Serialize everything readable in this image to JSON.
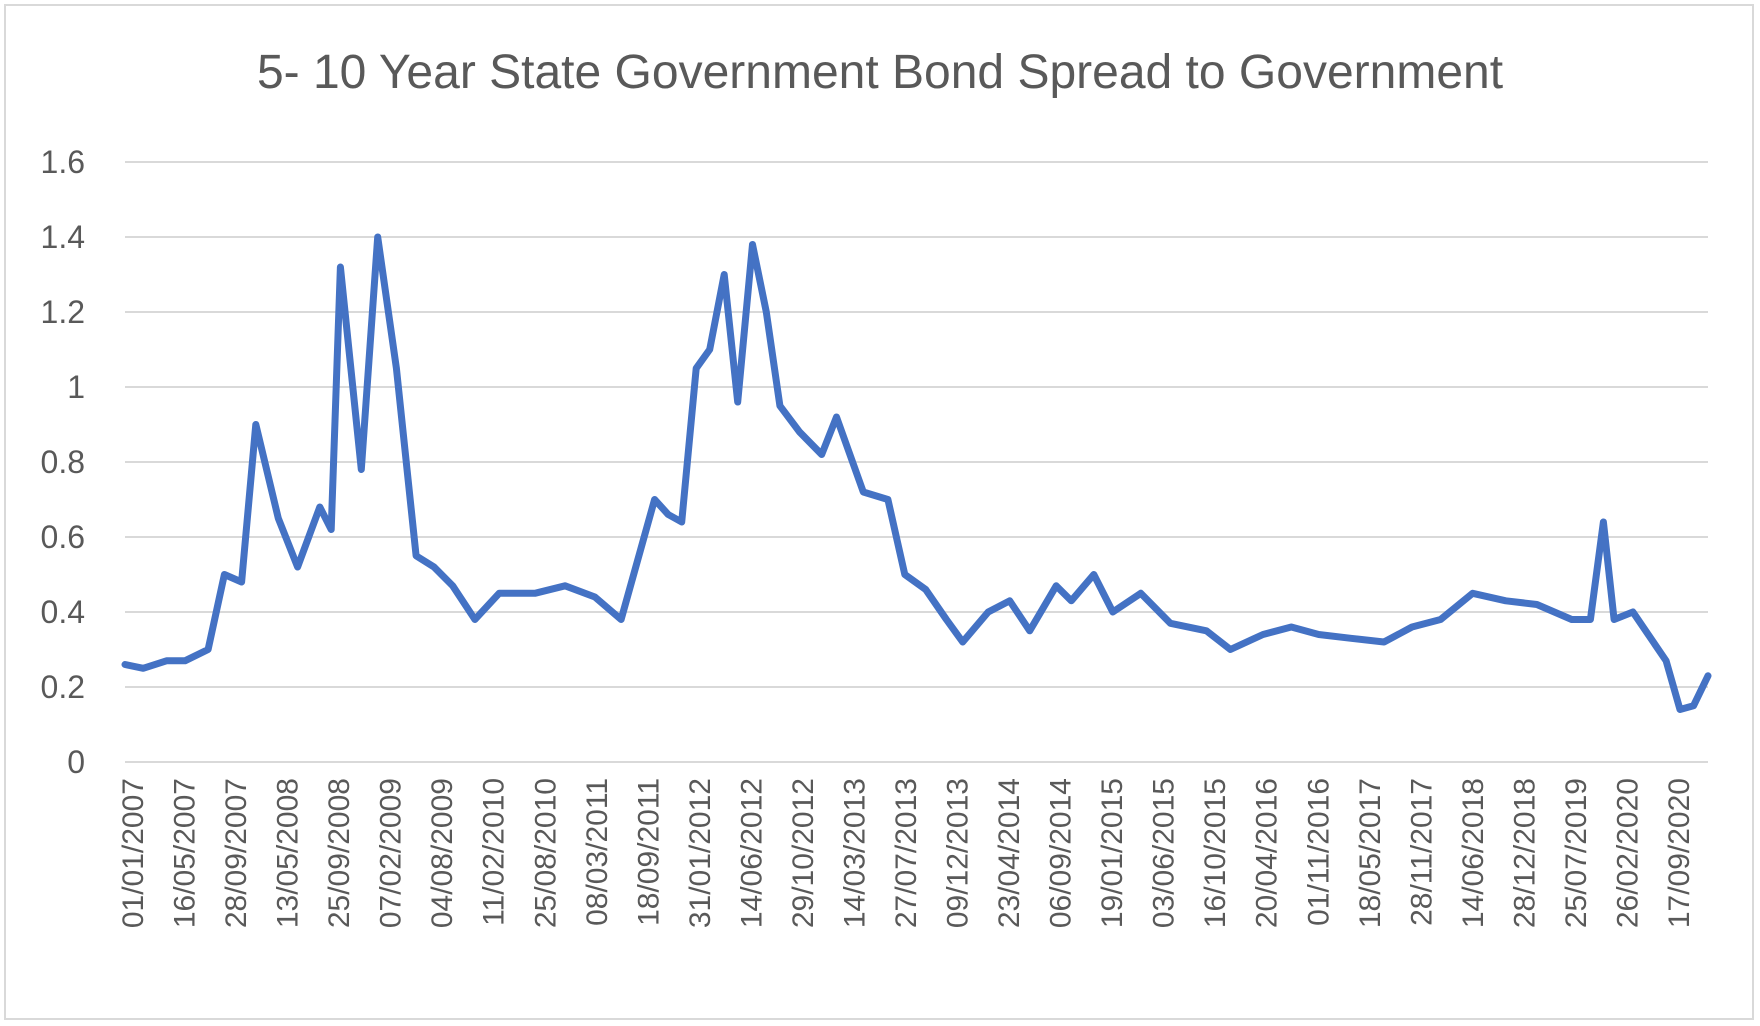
{
  "chart_data": {
    "type": "line",
    "title": "5- 10 Year State Government Bond Spread to Government",
    "xlabel": "",
    "ylabel": "",
    "ylim": [
      0,
      1.6
    ],
    "yticks": [
      {
        "value": 0,
        "label": "0"
      },
      {
        "value": 0.2,
        "label": "0.2"
      },
      {
        "value": 0.4,
        "label": "0.4"
      },
      {
        "value": 0.6,
        "label": "0.6"
      },
      {
        "value": 0.8,
        "label": "0.8"
      },
      {
        "value": 1.0,
        "label": "1"
      },
      {
        "value": 1.2,
        "label": "1.2"
      },
      {
        "value": 1.4,
        "label": "1.4"
      },
      {
        "value": 1.6,
        "label": "1.6"
      }
    ],
    "xticks": [
      "01/01/2007",
      "16/05/2007",
      "28/09/2007",
      "13/05/2008",
      "25/09/2008",
      "07/02/2009",
      "04/08/2009",
      "11/02/2010",
      "25/08/2010",
      "08/03/2011",
      "18/09/2011",
      "31/01/2012",
      "14/06/2012",
      "29/10/2012",
      "14/03/2013",
      "27/07/2013",
      "09/12/2013",
      "23/04/2014",
      "06/09/2014",
      "19/01/2015",
      "03/06/2015",
      "16/10/2015",
      "20/04/2016",
      "01/11/2016",
      "18/05/2017",
      "28/11/2017",
      "14/06/2018",
      "28/12/2018",
      "25/07/2019",
      "26/02/2020",
      "17/09/2020"
    ],
    "grid": true,
    "legend": "none",
    "series": [
      {
        "color": "#4472c4",
        "x": [
          "01/01/2007",
          "01/03/2007",
          "16/05/2007",
          "15/07/2007",
          "28/09/2007",
          "20/11/2007",
          "15/01/2008",
          "01/03/2008",
          "13/05/2008",
          "15/07/2008",
          "25/09/2008",
          "01/11/2008",
          "01/12/2008",
          "07/02/2009",
          "01/04/2009",
          "01/06/2009",
          "04/08/2009",
          "01/10/2009",
          "01/12/2009",
          "11/02/2010",
          "01/05/2010",
          "25/08/2010",
          "01/12/2010",
          "08/03/2011",
          "01/06/2011",
          "18/09/2011",
          "01/11/2011",
          "15/12/2011",
          "31/01/2012",
          "15/03/2012",
          "01/05/2012",
          "14/06/2012",
          "01/08/2012",
          "15/09/2012",
          "29/10/2012",
          "01/01/2013",
          "14/03/2013",
          "01/05/2013",
          "27/07/2013",
          "15/10/2013",
          "09/12/2013",
          "15/02/2014",
          "23/04/2014",
          "15/06/2014",
          "06/09/2014",
          "15/11/2014",
          "19/01/2015",
          "15/04/2015",
          "03/06/2015",
          "15/08/2015",
          "16/10/2015",
          "15/01/2016",
          "20/04/2016",
          "15/08/2016",
          "01/11/2016",
          "15/02/2017",
          "18/05/2017",
          "15/08/2017",
          "28/11/2017",
          "15/03/2018",
          "14/06/2018",
          "15/09/2018",
          "28/12/2018",
          "15/04/2019",
          "25/07/2019",
          "15/11/2019",
          "15/01/2020",
          "26/02/2020",
          "01/04/2020",
          "01/06/2020",
          "17/09/2020",
          "01/11/2020",
          "15/12/2020",
          "31/01/2021"
        ],
        "values": [
          0.26,
          0.25,
          0.27,
          0.27,
          0.3,
          0.5,
          0.48,
          0.9,
          0.65,
          0.52,
          0.68,
          0.62,
          1.32,
          0.78,
          1.4,
          1.05,
          0.55,
          0.52,
          0.47,
          0.38,
          0.45,
          0.45,
          0.47,
          0.44,
          0.38,
          0.7,
          0.66,
          0.64,
          1.05,
          1.1,
          1.3,
          0.96,
          1.38,
          1.2,
          0.95,
          0.88,
          0.82,
          0.92,
          0.72,
          0.7,
          0.5,
          0.46,
          0.38,
          0.32,
          0.4,
          0.43,
          0.35,
          0.47,
          0.43,
          0.5,
          0.4,
          0.45,
          0.37,
          0.35,
          0.3,
          0.34,
          0.36,
          0.34,
          0.33,
          0.32,
          0.36,
          0.38,
          0.45,
          0.43,
          0.42,
          0.38,
          0.38,
          0.64,
          0.38,
          0.4,
          0.27,
          0.14,
          0.15,
          0.23
        ]
      }
    ]
  }
}
